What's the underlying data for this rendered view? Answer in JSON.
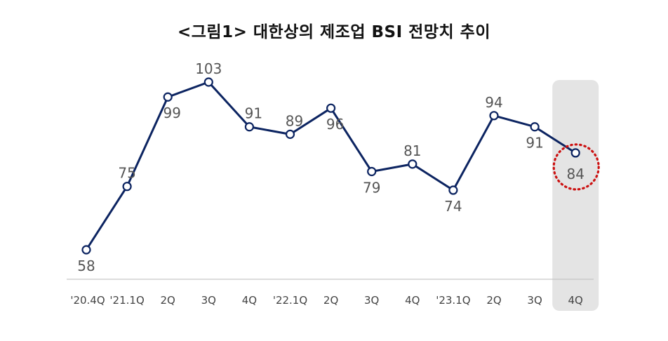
{
  "chart_data": {
    "type": "line",
    "title": "<그림1> 대한상의 제조업 BSI 전망치 추이",
    "categories": [
      "'20.4Q",
      "'21.1Q",
      "2Q",
      "3Q",
      "4Q",
      "'22.1Q",
      "2Q",
      "3Q",
      "4Q",
      "'23.1Q",
      "2Q",
      "3Q",
      "4Q"
    ],
    "series": [
      {
        "values": [
          58,
          75,
          99,
          103,
          91,
          89,
          96,
          79,
          81,
          74,
          94,
          91,
          84
        ]
      }
    ],
    "ylim": [
      50,
      110
    ],
    "grid": false,
    "highlight": {
      "category_index": 12,
      "label": "4Q"
    },
    "colors": {
      "line": "#0c2461",
      "marker_fill": "#ffffff",
      "highlight_band": "#e4e4e4",
      "highlight_circle": "#cc1111",
      "value_text": "#555555",
      "axis": "#bbbbbb"
    }
  }
}
